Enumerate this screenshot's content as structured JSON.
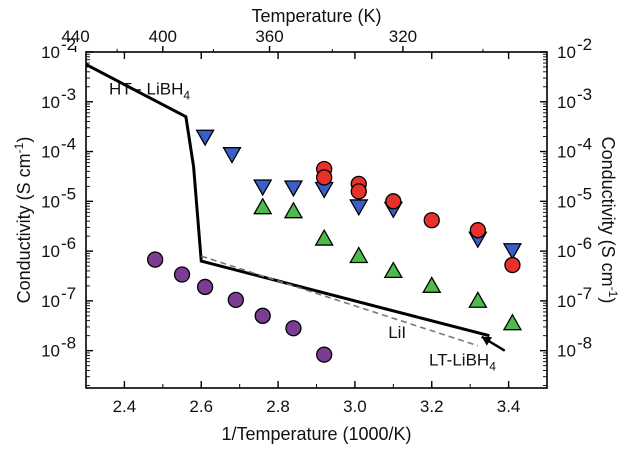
{
  "chart_data": {
    "type": "scatter",
    "xlabel": "1/Temperature (1000/K)",
    "top_xlabel": "Temperature (K)",
    "ylabel_left": "Conductivity (S cm",
    "ylabel_right": "Conductivity (S cm",
    "ylabel_sup": "-1",
    "ylabel_close": ")",
    "xlim": [
      2.3,
      3.5
    ],
    "ylim_log10": [
      -8.75,
      -2
    ],
    "x_ticks": [
      2.4,
      2.6,
      2.8,
      3.0,
      3.2,
      3.4
    ],
    "x_tick_labels": [
      "2.4",
      "2.6",
      "2.8",
      "3.0",
      "3.2",
      "3.4"
    ],
    "top_ticks_K": [
      440,
      400,
      360,
      320
    ],
    "top_tick_labels": [
      "440",
      "400",
      "360",
      "320"
    ],
    "y_exponents": [
      -2,
      -3,
      -4,
      -5,
      -6,
      -7,
      -8
    ],
    "y_tick_base": "10",
    "y_tick_exps": [
      "-2",
      "-3",
      "-4",
      "-5",
      "-6",
      "-7",
      "-8"
    ],
    "annotations": {
      "ht_prefix": "HT - LiBH",
      "ht_sub": "4",
      "lt_prefix": "LT-LiBH",
      "lt_sub": "4",
      "lii": "LiI"
    },
    "lines": [
      {
        "name": "LiBH4",
        "style": "solid",
        "color": "#000000",
        "x": [
          2.3,
          2.56,
          2.58,
          2.6,
          3.35
        ],
        "log10_y": [
          -2.25,
          -3.3,
          -4.3,
          -6.2,
          -7.7
        ]
      },
      {
        "name": "LiI",
        "style": "dashed",
        "color": "#7a7a7a",
        "x": [
          2.6,
          3.32
        ],
        "log10_y": [
          -6.1,
          -7.9
        ]
      }
    ],
    "series": [
      {
        "marker": "triangle-down",
        "color": "#3a5fc8",
        "x": [
          2.61,
          2.68,
          2.76,
          2.84,
          2.92,
          3.01,
          3.1,
          3.32,
          3.41
        ],
        "log10_y": [
          -3.7,
          -4.05,
          -4.7,
          -4.72,
          -4.75,
          -5.1,
          -5.15,
          -5.75,
          -5.98
        ]
      },
      {
        "marker": "triangle-up",
        "color": "#4cbb4c",
        "x": [
          2.76,
          2.84,
          2.92,
          3.01,
          3.1,
          3.2,
          3.32,
          3.41
        ],
        "log10_y": [
          -5.12,
          -5.2,
          -5.75,
          -6.1,
          -6.4,
          -6.7,
          -7.0,
          -7.45
        ]
      },
      {
        "marker": "circle",
        "color": "#e8312a",
        "x": [
          2.92,
          2.92,
          3.01,
          3.01,
          3.1,
          3.2,
          3.32,
          3.41
        ],
        "log10_y": [
          -4.35,
          -4.52,
          -4.65,
          -4.8,
          -5.0,
          -5.38,
          -5.58,
          -6.28
        ]
      },
      {
        "marker": "circle",
        "color": "#7b3c94",
        "x": [
          2.48,
          2.55,
          2.61,
          2.69,
          2.76,
          2.84,
          2.92
        ],
        "log10_y": [
          -6.17,
          -6.47,
          -6.72,
          -6.98,
          -7.3,
          -7.55,
          -8.08
        ]
      }
    ]
  }
}
